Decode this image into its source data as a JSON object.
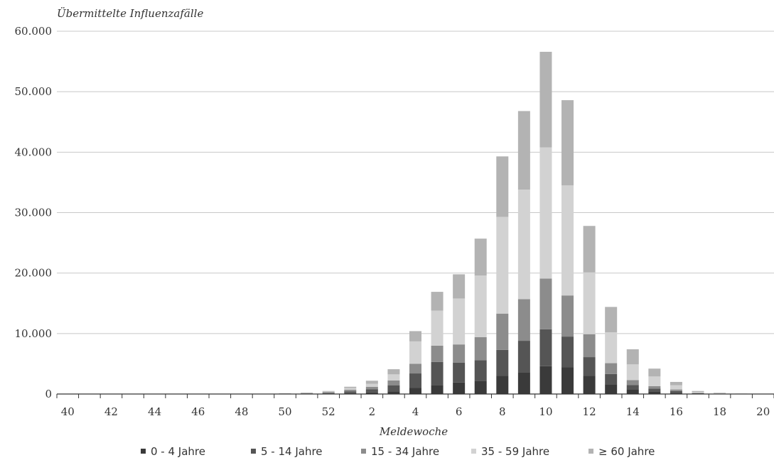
{
  "chart_data": {
    "type": "bar",
    "stacked": true,
    "title": "Übermittelte Influenzafälle",
    "xlabel": "Meldewoche",
    "ylabel": "Übermittelte Influenzafälle",
    "ylim": [
      0,
      60000
    ],
    "yticks": [
      0,
      10000,
      20000,
      30000,
      40000,
      50000,
      60000
    ],
    "ytick_labels": [
      "0",
      "10.000",
      "20.000",
      "30.000",
      "40.000",
      "50.000",
      "60.000"
    ],
    "xtick_labels": [
      "40",
      "42",
      "44",
      "46",
      "48",
      "50",
      "52",
      "2",
      "4",
      "6",
      "8",
      "10",
      "12",
      "14",
      "16",
      "18",
      "20"
    ],
    "grid": true,
    "legend_position": "bottom",
    "categories": [
      "40",
      "41",
      "42",
      "43",
      "44",
      "45",
      "46",
      "47",
      "48",
      "49",
      "50",
      "51",
      "52",
      "1",
      "2",
      "3",
      "4",
      "5",
      "6",
      "7",
      "8",
      "9",
      "10",
      "11",
      "12",
      "13",
      "14",
      "15",
      "16",
      "17",
      "18",
      "19",
      "20"
    ],
    "series": [
      {
        "name": "0 - 4 Jahre",
        "color": "#3a3a3a",
        "values": [
          0,
          0,
          0,
          0,
          0,
          0,
          0,
          0,
          0,
          0,
          20,
          40,
          80,
          150,
          250,
          450,
          1000,
          1500,
          1900,
          2200,
          3000,
          3600,
          4600,
          4400,
          3000,
          1600,
          800,
          400,
          200,
          60,
          20,
          10,
          0
        ]
      },
      {
        "name": "5 - 14 Jahre",
        "color": "#555555",
        "values": [
          0,
          0,
          0,
          0,
          0,
          0,
          0,
          0,
          0,
          0,
          30,
          60,
          130,
          300,
          550,
          1000,
          2400,
          3800,
          3300,
          3400,
          4300,
          5200,
          6100,
          5100,
          3100,
          1700,
          700,
          500,
          300,
          80,
          30,
          10,
          0
        ]
      },
      {
        "name": "15 - 34 Jahre",
        "color": "#8c8c8c",
        "values": [
          0,
          0,
          0,
          0,
          0,
          0,
          0,
          0,
          0,
          0,
          20,
          50,
          100,
          250,
          400,
          800,
          1600,
          2700,
          3000,
          3800,
          6000,
          6900,
          8400,
          6800,
          3800,
          1800,
          800,
          400,
          250,
          60,
          20,
          10,
          0
        ]
      },
      {
        "name": "35 - 59 Jahre",
        "color": "#d2d2d2",
        "values": [
          0,
          0,
          0,
          0,
          0,
          0,
          0,
          0,
          0,
          0,
          20,
          50,
          100,
          300,
          500,
          1000,
          3700,
          5800,
          7600,
          10200,
          16000,
          18100,
          21700,
          18200,
          10200,
          5100,
          2600,
          1600,
          700,
          150,
          50,
          20,
          0
        ]
      },
      {
        "name": "≥ 60 Jahre",
        "color": "#b3b3b3",
        "values": [
          0,
          0,
          0,
          0,
          0,
          0,
          0,
          0,
          0,
          0,
          10,
          50,
          90,
          200,
          500,
          850,
          1700,
          3100,
          4000,
          6100,
          10000,
          13000,
          15800,
          14100,
          7700,
          4200,
          2500,
          1300,
          550,
          150,
          80,
          20,
          0
        ]
      }
    ]
  }
}
